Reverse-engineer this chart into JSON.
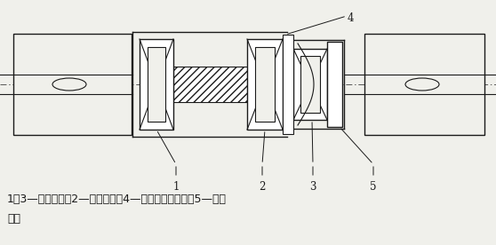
{
  "bg_color": "#f0f0eb",
  "line_color": "#1a1a1a",
  "caption_line1": "1、3—自由轴承，2—定位轴承，4—安装定位套位置，5—轴承",
  "caption_line2": "压盖",
  "fig_width": 5.58,
  "fig_height": 2.76,
  "dpi": 100
}
